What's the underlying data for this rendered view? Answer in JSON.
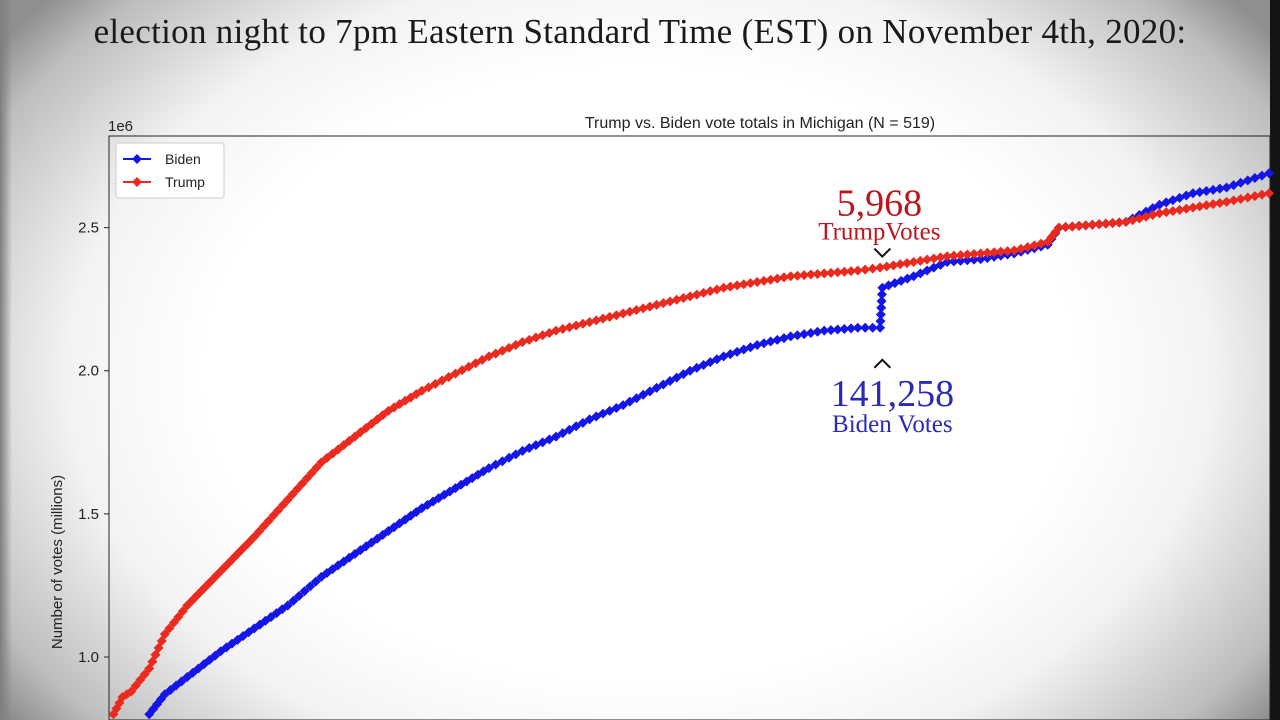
{
  "caption": "election night to 7pm Eastern Standard Time (EST) on November 4th, 2020:",
  "colors": {
    "biden": "#1515e8",
    "trump": "#ea2a1e",
    "annotation_trump": "#c0141c",
    "annotation_biden": "#2a2ab8"
  },
  "chart_data": {
    "type": "line",
    "title": "Trump vs. Biden vote totals in Michigan (N = 519)",
    "ylabel": "Number of votes (millions)",
    "xlabel": "",
    "offset_text": "1e6",
    "yticks": [
      1.0,
      1.5,
      2.0,
      2.5
    ],
    "ytick_labels": [
      "1.0",
      "1.5",
      "2.0",
      "2.5"
    ],
    "ylim": [
      0.78,
      2.82
    ],
    "xlim": [
      0,
      519
    ],
    "grid": false,
    "legend_position": "top-left",
    "series": [
      {
        "name": "Biden",
        "color": "#1515e8",
        "x": [
          18,
          25,
          35,
          50,
          65,
          80,
          95,
          110,
          125,
          140,
          155,
          170,
          185,
          200,
          215,
          230,
          245,
          260,
          275,
          290,
          305,
          320,
          335,
          345,
          346,
          360,
          375,
          390,
          405,
          420,
          425,
          440,
          455,
          470,
          485,
          500,
          519
        ],
        "values": [
          0.8,
          0.87,
          0.93,
          1.02,
          1.1,
          1.18,
          1.28,
          1.36,
          1.44,
          1.52,
          1.59,
          1.66,
          1.72,
          1.77,
          1.83,
          1.88,
          1.94,
          2.0,
          2.05,
          2.09,
          2.12,
          2.14,
          2.15,
          2.15,
          2.29,
          2.33,
          2.38,
          2.39,
          2.41,
          2.44,
          2.5,
          2.51,
          2.52,
          2.58,
          2.62,
          2.64,
          2.69
        ]
      },
      {
        "name": "Trump",
        "color": "#ea2a1e",
        "x": [
          2,
          6,
          10,
          18,
          25,
          35,
          50,
          65,
          80,
          95,
          110,
          125,
          140,
          155,
          170,
          185,
          200,
          215,
          230,
          245,
          260,
          275,
          290,
          305,
          320,
          335,
          345,
          360,
          375,
          390,
          405,
          420,
          425,
          440,
          455,
          470,
          485,
          500,
          519
        ],
        "values": [
          0.8,
          0.86,
          0.88,
          0.96,
          1.08,
          1.18,
          1.3,
          1.42,
          1.55,
          1.68,
          1.77,
          1.86,
          1.93,
          1.99,
          2.05,
          2.1,
          2.14,
          2.17,
          2.2,
          2.23,
          2.26,
          2.29,
          2.31,
          2.33,
          2.34,
          2.35,
          2.36,
          2.38,
          2.4,
          2.41,
          2.42,
          2.45,
          2.5,
          2.51,
          2.52,
          2.55,
          2.57,
          2.59,
          2.62
        ]
      }
    ],
    "annotations": [
      {
        "id": "trump",
        "value": "5,968",
        "label": "TrumpVotes",
        "marker": "⌄",
        "x": 346,
        "y": 2.35
      },
      {
        "id": "biden",
        "value": "141,258",
        "label": "Biden Votes",
        "marker": "^",
        "x": 346,
        "y": 2.15
      }
    ]
  }
}
